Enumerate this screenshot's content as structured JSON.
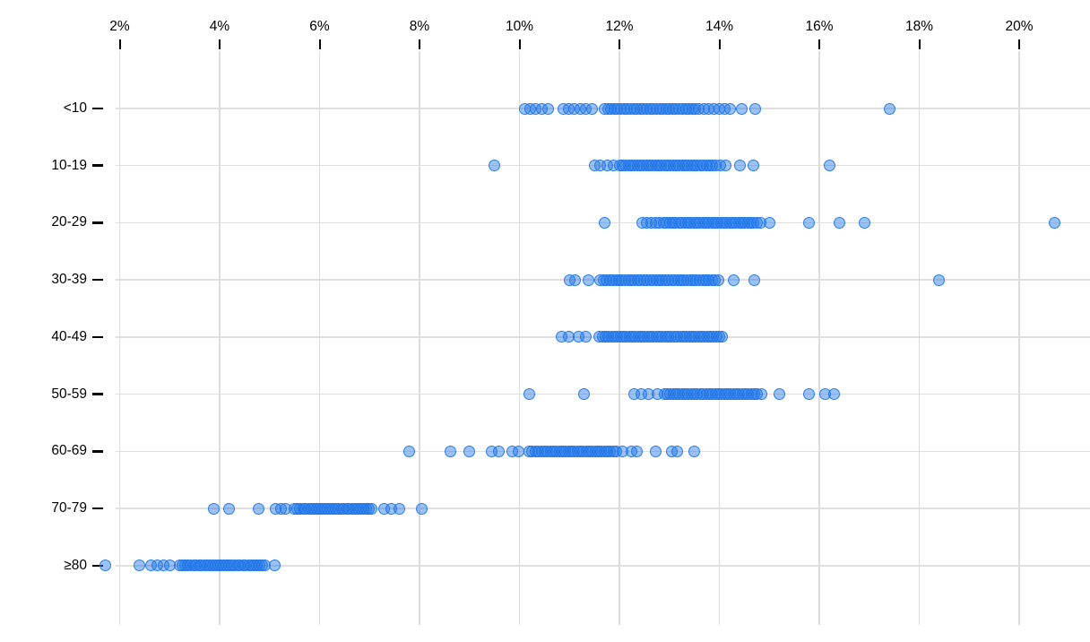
{
  "chart_data": {
    "type": "scatter",
    "subtype": "strip-plot",
    "title": "",
    "xlabel": "",
    "ylabel": "",
    "grid": true,
    "x_axis_position": "top",
    "xlim": [
      1.3,
      21.4
    ],
    "x_ticks": [
      2,
      4,
      6,
      8,
      10,
      12,
      14,
      16,
      18,
      20
    ],
    "x_tick_labels": [
      "2%",
      "4%",
      "6%",
      "8%",
      "10%",
      "12%",
      "14%",
      "16%",
      "18%",
      "20%"
    ],
    "categories": [
      "<10",
      "10-19",
      "20-29",
      "30-39",
      "40-49",
      "50-59",
      "60-69",
      "70-79",
      "≥80"
    ],
    "colors": {
      "marker_stroke": "rgba(29,116,232,0.9)",
      "marker_fill": "rgba(35,120,233,0.45)",
      "gridline": "#dcdcdc",
      "axis_text": "#000000"
    },
    "series": [
      {
        "name": "<10",
        "values": [
          10.1,
          10.22,
          10.33,
          10.45,
          10.58,
          10.88,
          10.98,
          11.1,
          11.22,
          11.33,
          11.45,
          11.7,
          11.77,
          11.83,
          11.9,
          11.96,
          12.03,
          12.09,
          12.16,
          12.22,
          12.29,
          12.35,
          12.42,
          12.48,
          12.55,
          12.61,
          12.68,
          12.74,
          12.81,
          12.87,
          12.94,
          13.0,
          13.07,
          13.13,
          13.2,
          13.26,
          13.33,
          13.39,
          13.46,
          13.52,
          13.59,
          13.7,
          13.78,
          13.9,
          14.0,
          14.1,
          14.22,
          14.45,
          14.72,
          17.4
        ]
      },
      {
        "name": "10-19",
        "values": [
          9.5,
          11.5,
          11.62,
          11.75,
          11.88,
          12.0,
          12.06,
          12.12,
          12.18,
          12.24,
          12.3,
          12.36,
          12.42,
          12.48,
          12.54,
          12.6,
          12.66,
          12.72,
          12.78,
          12.84,
          12.9,
          12.96,
          13.02,
          13.08,
          13.14,
          13.2,
          13.26,
          13.32,
          13.38,
          13.44,
          13.5,
          13.56,
          13.62,
          13.68,
          13.74,
          13.8,
          13.86,
          13.92,
          14.02,
          14.12,
          14.42,
          14.68,
          16.2
        ]
      },
      {
        "name": "20-29",
        "values": [
          11.7,
          12.45,
          12.55,
          12.63,
          12.72,
          12.8,
          12.88,
          12.95,
          13.01,
          13.07,
          13.13,
          13.19,
          13.25,
          13.31,
          13.37,
          13.43,
          13.49,
          13.55,
          13.61,
          13.67,
          13.73,
          13.79,
          13.85,
          13.91,
          13.97,
          14.03,
          14.09,
          14.15,
          14.21,
          14.27,
          14.33,
          14.39,
          14.45,
          14.51,
          14.57,
          14.63,
          14.69,
          14.75,
          14.82,
          15.0,
          15.8,
          16.4,
          16.9,
          20.7
        ]
      },
      {
        "name": "30-39",
        "values": [
          11.0,
          11.12,
          11.38,
          11.62,
          11.68,
          11.74,
          11.81,
          11.87,
          11.93,
          11.99,
          12.05,
          12.12,
          12.18,
          12.24,
          12.3,
          12.36,
          12.43,
          12.49,
          12.55,
          12.61,
          12.67,
          12.74,
          12.8,
          12.86,
          12.92,
          12.98,
          13.05,
          13.11,
          13.17,
          13.23,
          13.29,
          13.36,
          13.42,
          13.48,
          13.54,
          13.6,
          13.67,
          13.73,
          13.79,
          13.85,
          13.91,
          13.98,
          14.28,
          14.7,
          18.4
        ]
      },
      {
        "name": "40-49",
        "values": [
          10.85,
          10.98,
          11.18,
          11.32,
          11.6,
          11.66,
          11.72,
          11.78,
          11.84,
          11.9,
          11.96,
          12.02,
          12.08,
          12.14,
          12.2,
          12.26,
          12.32,
          12.38,
          12.44,
          12.5,
          12.56,
          12.62,
          12.68,
          12.74,
          12.8,
          12.86,
          12.92,
          12.98,
          13.04,
          13.1,
          13.16,
          13.22,
          13.28,
          13.34,
          13.4,
          13.46,
          13.52,
          13.58,
          13.64,
          13.7,
          13.76,
          13.82,
          13.88,
          13.94,
          14.0,
          14.06
        ]
      },
      {
        "name": "50-59",
        "values": [
          10.2,
          11.3,
          12.3,
          12.44,
          12.58,
          12.76,
          12.9,
          12.96,
          13.02,
          13.08,
          13.14,
          13.2,
          13.26,
          13.32,
          13.38,
          13.44,
          13.5,
          13.56,
          13.62,
          13.68,
          13.74,
          13.8,
          13.86,
          13.92,
          13.98,
          14.04,
          14.1,
          14.16,
          14.22,
          14.28,
          14.34,
          14.4,
          14.46,
          14.52,
          14.58,
          14.64,
          14.7,
          14.76,
          14.84,
          15.2,
          15.8,
          16.12,
          16.3
        ]
      },
      {
        "name": "60-69",
        "values": [
          7.8,
          8.62,
          9.0,
          9.45,
          9.58,
          9.85,
          9.98,
          10.2,
          10.26,
          10.32,
          10.38,
          10.44,
          10.5,
          10.56,
          10.62,
          10.68,
          10.74,
          10.8,
          10.86,
          10.92,
          10.98,
          11.04,
          11.1,
          11.16,
          11.22,
          11.28,
          11.34,
          11.4,
          11.46,
          11.52,
          11.58,
          11.64,
          11.7,
          11.76,
          11.82,
          11.88,
          11.94,
          12.06,
          12.25,
          12.35,
          12.72,
          13.05,
          13.15,
          13.5
        ]
      },
      {
        "name": "70-79",
        "values": [
          3.88,
          4.18,
          4.78,
          5.12,
          5.22,
          5.32,
          5.5,
          5.56,
          5.61,
          5.67,
          5.72,
          5.78,
          5.83,
          5.89,
          5.94,
          6.0,
          6.05,
          6.11,
          6.16,
          6.22,
          6.27,
          6.33,
          6.38,
          6.44,
          6.49,
          6.55,
          6.6,
          6.66,
          6.71,
          6.77,
          6.82,
          6.88,
          6.93,
          6.99,
          7.04,
          7.3,
          7.44,
          7.6,
          8.05
        ]
      },
      {
        "name": "≥80",
        "values": [
          1.72,
          2.4,
          2.62,
          2.75,
          2.88,
          3.0,
          3.2,
          3.26,
          3.31,
          3.37,
          3.42,
          3.48,
          3.53,
          3.59,
          3.64,
          3.7,
          3.75,
          3.81,
          3.86,
          3.92,
          3.97,
          4.03,
          4.08,
          4.14,
          4.19,
          4.25,
          4.3,
          4.36,
          4.41,
          4.47,
          4.52,
          4.58,
          4.63,
          4.69,
          4.74,
          4.8,
          4.85,
          4.91,
          5.1
        ]
      }
    ]
  }
}
